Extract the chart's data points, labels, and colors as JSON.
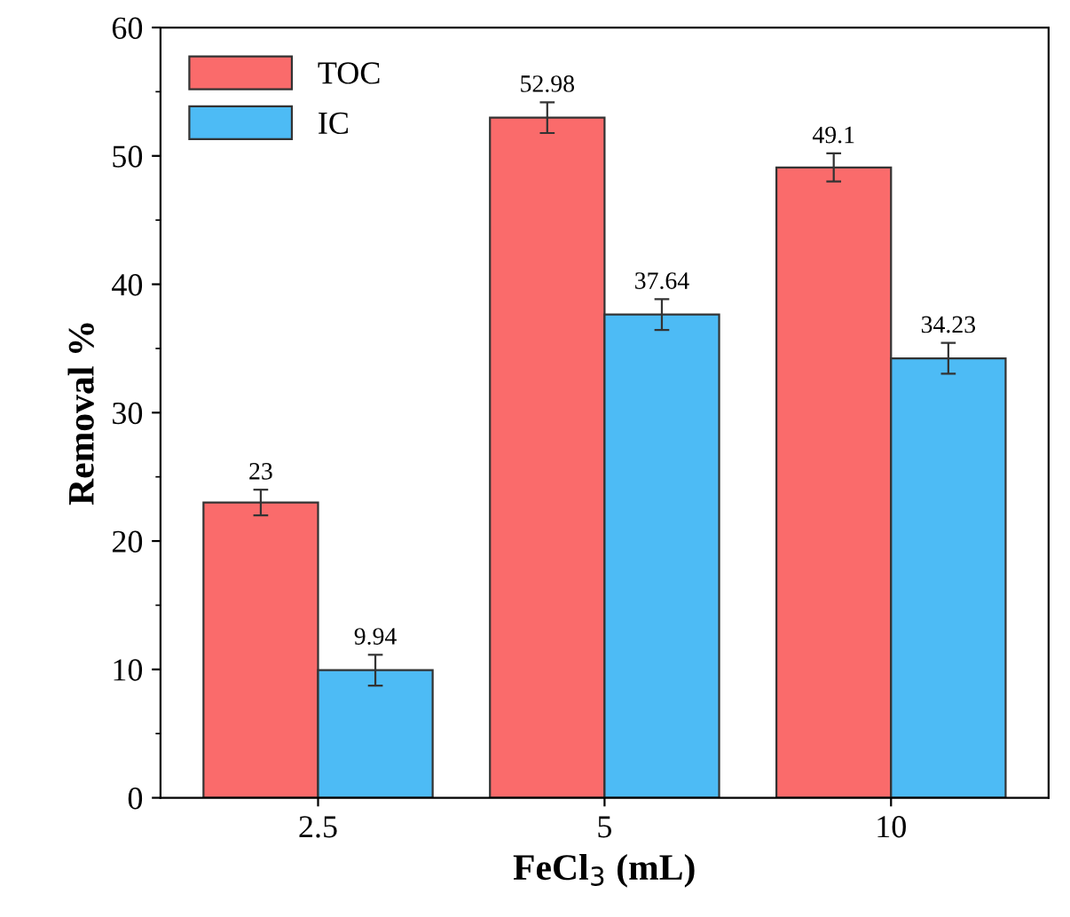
{
  "chart_data": {
    "type": "bar",
    "xlabel": "FeCl$_{3}$ (mL)",
    "ylabel": "Removal %",
    "categories": [
      "2.5",
      "5",
      "10"
    ],
    "series": [
      {
        "name": "TOC",
        "color": "#fa6b6b",
        "values": [
          23,
          52.98,
          49.1
        ],
        "errors": [
          1.0,
          1.2,
          1.1
        ]
      },
      {
        "name": "IC",
        "color": "#4dbbf5",
        "values": [
          9.94,
          37.64,
          34.23
        ],
        "errors": [
          1.2,
          1.2,
          1.2
        ]
      }
    ],
    "ylim": [
      0,
      60
    ],
    "yticks": [
      0,
      10,
      20,
      30,
      40,
      50,
      60
    ],
    "data_labels": true,
    "legend": "top left",
    "grid": false
  }
}
